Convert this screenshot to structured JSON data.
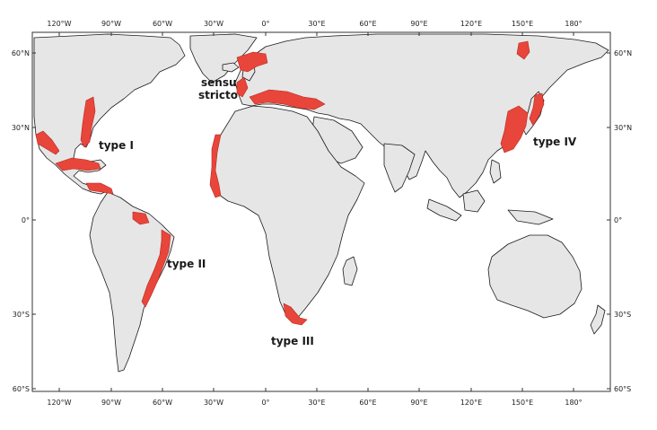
{
  "colors": {
    "land": "#e6e6e6",
    "coastline": "#1a1a1a",
    "distribution": "#e8463b",
    "frame": "#333333"
  },
  "axes": {
    "top_lon_ticks": [
      "120°W",
      "90°W",
      "60°W",
      "30°W",
      "0°",
      "30°E",
      "60°E",
      "90°E",
      "120°E",
      "150°E",
      "180°"
    ],
    "bottom_lon_ticks": [
      "120°W",
      "90°W",
      "60°W",
      "30°W",
      "0°",
      "30°E",
      "60°E",
      "90°E",
      "120°E",
      "150°E",
      "180°"
    ],
    "left_lat_ticks": [
      "60°N",
      "30°N",
      "0°",
      "30°S",
      "60°S"
    ],
    "right_lat_ticks": [
      "60°N",
      "30°N",
      "0°",
      "30°S",
      "60°S"
    ]
  },
  "regions": {
    "sensu_stricto_line1": "sensu",
    "sensu_stricto_line2": "stricto",
    "type_1": "type I",
    "type_2": "type II",
    "type_3": "type III",
    "type_4": "type IV"
  }
}
